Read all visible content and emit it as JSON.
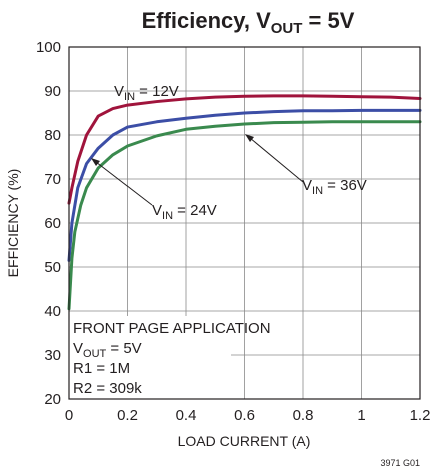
{
  "chart_data": {
    "type": "line",
    "title": {
      "main": "Efficiency, V",
      "sub": "OUT",
      "tail": " = 5V"
    },
    "xlabel": "LOAD CURRENT (A)",
    "ylabel": "EFFICIENCY (%)",
    "xlim": [
      0,
      1.2
    ],
    "ylim": [
      20,
      100
    ],
    "x_ticks": [
      "0",
      "0.2",
      "0.4",
      "0.6",
      "0.8",
      "1",
      "1.2"
    ],
    "y_ticks": [
      "20",
      "30",
      "40",
      "50",
      "60",
      "70",
      "80",
      "90",
      "100"
    ],
    "grid": true,
    "series": [
      {
        "label": {
          "pre": "V",
          "sub": "IN",
          "post": " = 12V"
        },
        "color": "#a0143c",
        "x": [
          0,
          0.01,
          0.03,
          0.06,
          0.1,
          0.15,
          0.2,
          0.3,
          0.4,
          0.5,
          0.6,
          0.7,
          0.8,
          0.9,
          1.0,
          1.1,
          1.2
        ],
        "y": [
          64.5,
          68,
          74,
          80,
          84.3,
          86,
          86.8,
          87.6,
          88.2,
          88.6,
          88.8,
          88.9,
          88.9,
          88.8,
          88.7,
          88.6,
          88.3
        ]
      },
      {
        "label": {
          "pre": "V",
          "sub": "IN",
          "post": " = 24V"
        },
        "color": "#3c4ea6",
        "x": [
          0,
          0.01,
          0.03,
          0.06,
          0.1,
          0.15,
          0.2,
          0.25,
          0.3,
          0.4,
          0.5,
          0.6,
          0.7,
          0.8,
          0.9,
          1.0,
          1.1,
          1.2
        ],
        "y": [
          51.5,
          60,
          68,
          73.5,
          77,
          80,
          81.8,
          82.4,
          83,
          83.8,
          84.5,
          85,
          85.3,
          85.5,
          85.5,
          85.6,
          85.6,
          85.6
        ]
      },
      {
        "label": {
          "pre": "V",
          "sub": "IN",
          "post": " = 36V"
        },
        "color": "#3a8a4e",
        "x": [
          0,
          0.01,
          0.02,
          0.04,
          0.06,
          0.1,
          0.15,
          0.2,
          0.3,
          0.4,
          0.5,
          0.6,
          0.7,
          0.8,
          0.9,
          1.0,
          1.1,
          1.2
        ],
        "y": [
          40.5,
          52,
          58,
          64,
          68,
          72.5,
          75.5,
          77.5,
          79.8,
          81.3,
          82,
          82.5,
          82.8,
          82.9,
          83,
          83,
          83,
          83
        ]
      }
    ],
    "annotation": {
      "line1": "FRONT PAGE APPLICATION",
      "line2": {
        "pre": "V",
        "sub": "OUT",
        "post": " = 5V"
      },
      "line3": "R1 = 1M",
      "line4": "R2 = 309k"
    },
    "figure_id": "3971 G01"
  }
}
